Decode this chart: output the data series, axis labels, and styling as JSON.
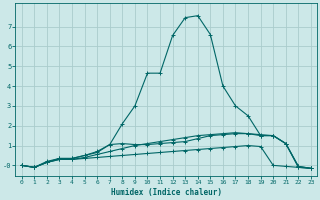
{
  "xlabel": "Humidex (Indice chaleur)",
  "bg_color": "#cce8e8",
  "grid_color": "#aacccc",
  "line_color": "#006666",
  "xlim": [
    -0.5,
    23.5
  ],
  "ylim": [
    -0.55,
    8.2
  ],
  "xticks": [
    0,
    1,
    2,
    3,
    4,
    5,
    6,
    7,
    8,
    9,
    10,
    11,
    12,
    13,
    14,
    15,
    16,
    17,
    18,
    19,
    20,
    21,
    22,
    23
  ],
  "yticks": [
    0,
    1,
    2,
    3,
    4,
    5,
    6,
    7
  ],
  "series": [
    [
      0.0,
      -0.1,
      0.15,
      0.3,
      0.3,
      0.35,
      0.4,
      0.45,
      0.5,
      0.55,
      0.6,
      0.65,
      0.7,
      0.75,
      0.8,
      0.85,
      0.9,
      0.95,
      1.0,
      0.95,
      0.0,
      -0.05,
      -0.1,
      -0.15
    ],
    [
      0.0,
      -0.1,
      0.15,
      0.3,
      0.3,
      0.4,
      0.55,
      0.7,
      0.85,
      1.0,
      1.1,
      1.2,
      1.3,
      1.4,
      1.5,
      1.55,
      1.6,
      1.65,
      1.6,
      1.55,
      1.5,
      1.1,
      -0.05,
      -0.15
    ],
    [
      0.0,
      -0.1,
      0.15,
      0.35,
      0.35,
      0.5,
      0.65,
      1.05,
      1.1,
      1.05,
      1.05,
      1.1,
      1.15,
      1.2,
      1.35,
      1.5,
      1.55,
      1.6,
      1.6,
      1.5,
      1.5,
      1.1,
      -0.05,
      -0.15
    ],
    [
      0.0,
      -0.1,
      0.2,
      0.35,
      0.35,
      0.5,
      0.7,
      1.05,
      2.1,
      3.0,
      4.65,
      4.65,
      6.55,
      7.45,
      7.55,
      6.6,
      4.0,
      3.0,
      2.5,
      1.5,
      1.5,
      1.1,
      -0.1,
      -0.15
    ]
  ]
}
